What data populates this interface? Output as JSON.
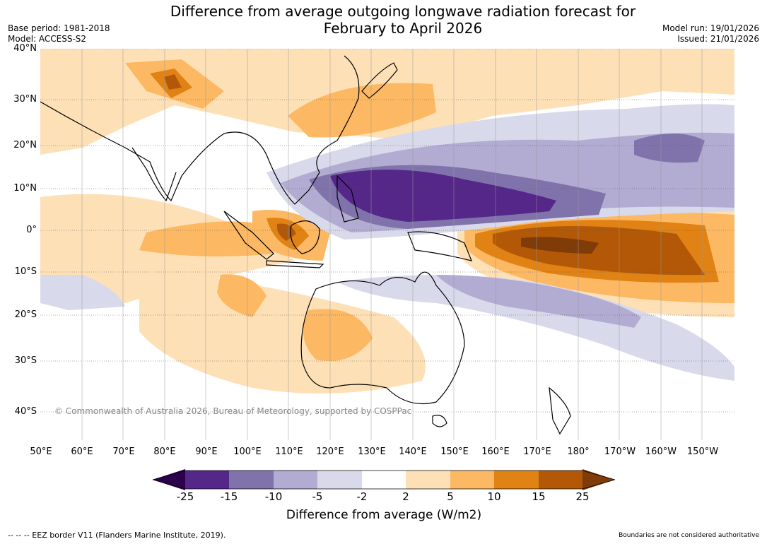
{
  "title_line1": "Difference from average outgoing longwave radiation forecast for",
  "title_line2": "February to April 2026",
  "meta": {
    "base_period": "Base period: 1981-2018",
    "model": "Model: ACCESS-S2",
    "model_run": "Model run: 19/01/2026",
    "issued": "Issued: 21/01/2026"
  },
  "lat_labels": [
    "40°N",
    "30°N",
    "20°N",
    "10°N",
    "0°",
    "10°S",
    "20°S",
    "30°S",
    "40°S"
  ],
  "lon_labels": [
    "50°E",
    "60°E",
    "70°E",
    "80°E",
    "90°E",
    "100°E",
    "110°E",
    "120°E",
    "130°E",
    "140°E",
    "150°E",
    "160°E",
    "170°E",
    "180°",
    "170°W",
    "160°W",
    "150°W"
  ],
  "copyright": "© Commonwealth of Australia 2026, Bureau of Meteorology, supported by COSPPac",
  "colorbar": {
    "label": "Difference from average (W/m2)",
    "ticks": [
      "-25",
      "-15",
      "-10",
      "-5",
      "-2",
      "2",
      "5",
      "10",
      "15",
      "25"
    ],
    "colors": {
      "lt_neg25": "#2d004b",
      "neg25_neg15": "#542788",
      "neg15_neg10": "#8073ac",
      "neg10_neg5": "#b2abd2",
      "neg5_neg2": "#d8daeb",
      "neg2_2": "#ffffff",
      "p2_5": "#fee0b6",
      "p5_10": "#fdb863",
      "p10_15": "#e08214",
      "p15_25": "#b35806",
      "gt_25": "#7f3b08"
    }
  },
  "footer_left": "--  --  -- EEZ border V11 (Flanders Marine Institute, 2019).",
  "footer_right": "Boundaries are not considered authoritative"
}
